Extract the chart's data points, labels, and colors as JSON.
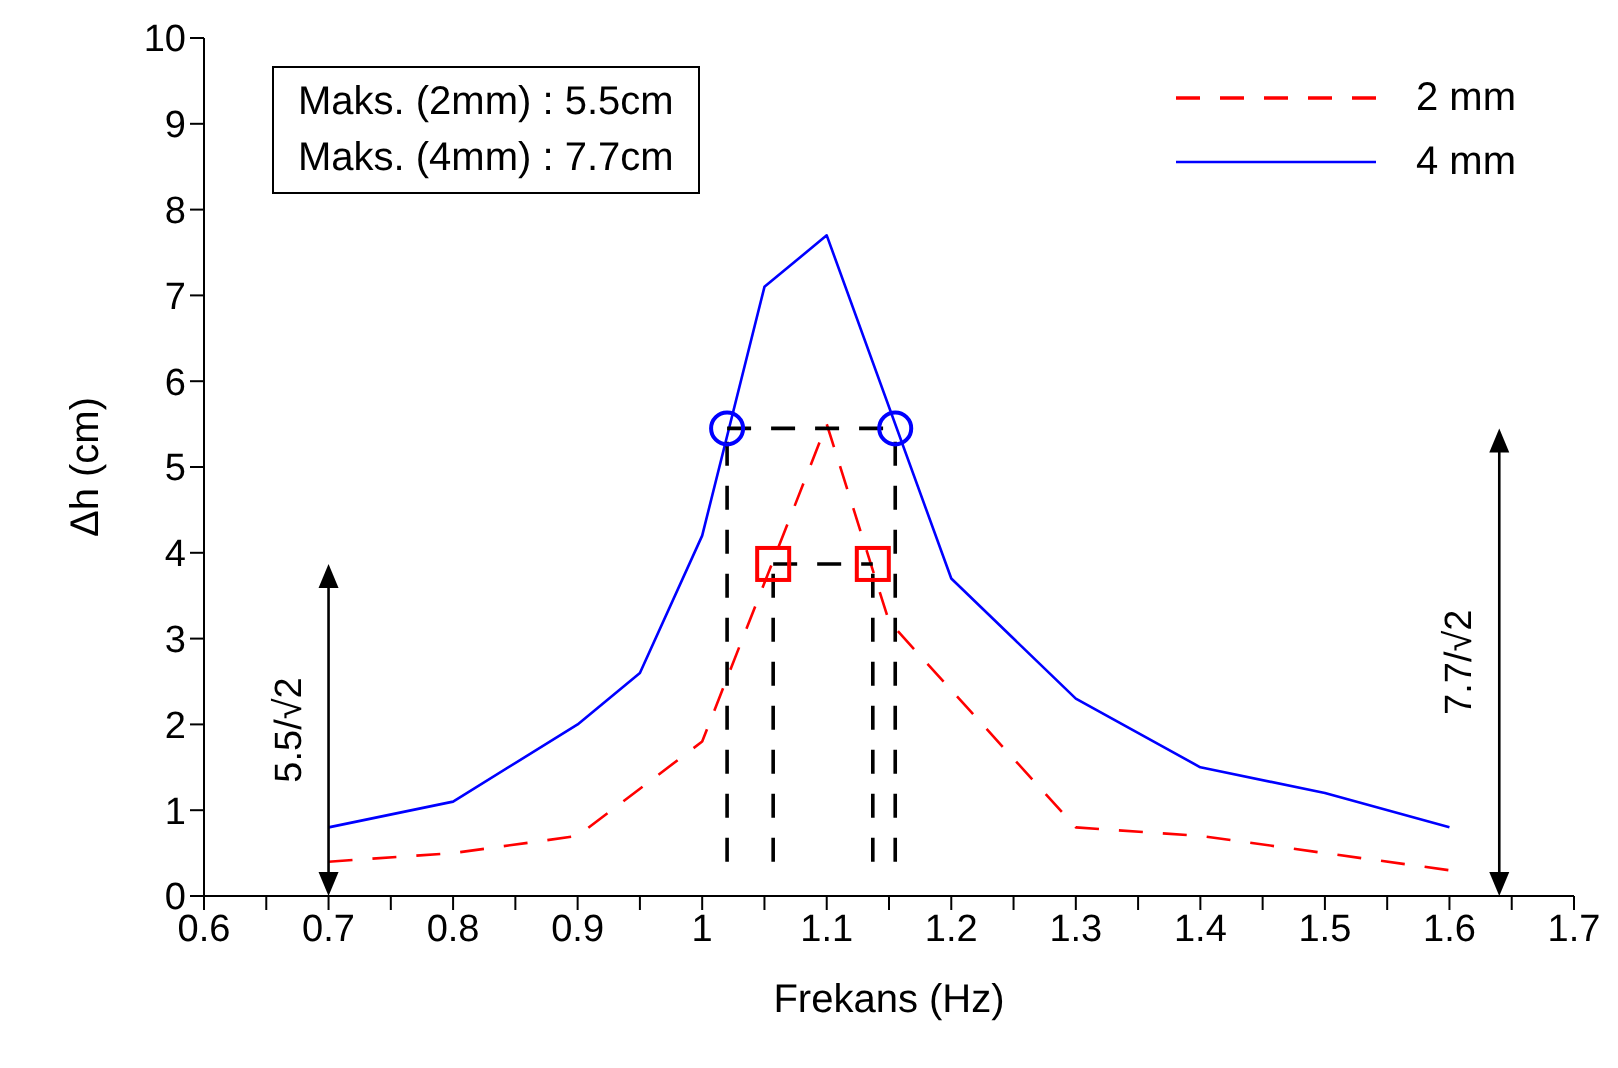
{
  "chart_data": {
    "type": "line",
    "xlabel": "Frekans (Hz)",
    "ylabel": "Δh (cm)",
    "xlim": [
      0.6,
      1.7
    ],
    "ylim": [
      0,
      10
    ],
    "xticks": [
      0.6,
      {
        "value": 0.65,
        "label": null
      },
      0.7,
      {
        "value": 0.75,
        "label": null
      },
      0.8,
      {
        "value": 0.85,
        "label": null
      },
      0.9,
      {
        "value": 0.95,
        "label": null
      },
      1,
      {
        "value": 1.05,
        "label": null
      },
      1.1,
      {
        "value": 1.15,
        "label": null
      },
      1.2,
      {
        "value": 1.25,
        "label": null
      },
      1.3,
      {
        "value": 1.35,
        "label": null
      },
      1.4,
      {
        "value": 1.45,
        "label": null
      },
      1.5,
      {
        "value": 1.55,
        "label": null
      },
      1.6,
      {
        "value": 1.65,
        "label": null
      },
      1.7
    ],
    "yticks": [
      0,
      1,
      2,
      3,
      4,
      5,
      6,
      7,
      8,
      9,
      10
    ],
    "grid": false,
    "legend": "top right",
    "series": [
      {
        "name": "2 mm",
        "color": "#ff0000",
        "line_style": "dashed",
        "marker": "none",
        "x": [
          0.7,
          0.8,
          0.9,
          1.0,
          1.1,
          1.15,
          1.3,
          1.4,
          1.5,
          1.6
        ],
        "values": [
          0.4,
          0.5,
          0.7,
          1.8,
          5.5,
          3.2,
          0.8,
          0.7,
          0.5,
          0.3
        ]
      },
      {
        "name": "4 mm",
        "color": "#0000ff",
        "line_style": "solid",
        "marker": "none",
        "x": [
          0.7,
          0.8,
          0.9,
          0.95,
          1.0,
          1.05,
          1.1,
          1.2,
          1.3,
          1.4,
          1.5,
          1.6
        ],
        "values": [
          0.8,
          1.1,
          2.0,
          2.6,
          4.2,
          7.1,
          7.7,
          3.7,
          2.3,
          1.5,
          1.2,
          0.8
        ]
      },
      {
        "type": "line",
        "color": "#000000",
        "line_style": "dashed",
        "marker": "none",
        "x": [
          1.02,
          1.155
        ],
        "values": [
          5.45,
          5.45
        ]
      },
      {
        "type": "line",
        "color": "#000000",
        "line_style": "dashed",
        "marker": "none",
        "x": [
          1.02,
          1.02
        ],
        "values": [
          0.4,
          5.45
        ]
      },
      {
        "type": "line",
        "color": "#000000",
        "line_style": "dashed",
        "marker": "none",
        "x": [
          1.155,
          1.155
        ],
        "values": [
          0.4,
          5.45
        ]
      },
      {
        "type": "line",
        "color": "#000000",
        "line_style": "dashed",
        "marker": "none",
        "x": [
          1.057,
          1.137
        ],
        "values": [
          3.87,
          3.87
        ]
      },
      {
        "type": "line",
        "color": "#000000",
        "line_style": "dashed",
        "marker": "none",
        "x": [
          1.057,
          1.057
        ],
        "values": [
          0.4,
          3.87
        ]
      },
      {
        "type": "line",
        "color": "#000000",
        "line_style": "dashed",
        "marker": "none",
        "x": [
          1.137,
          1.137
        ],
        "values": [
          0.4,
          3.87
        ]
      },
      {
        "type": "scatter",
        "color": "#0000ff",
        "marker": "circle",
        "x": [
          1.02,
          1.155
        ],
        "values": [
          5.45,
          5.45
        ]
      },
      {
        "type": "scatter",
        "color": "#ff0000",
        "marker": "square",
        "x": [
          1.057,
          1.137
        ],
        "values": [
          3.87,
          3.87
        ]
      }
    ],
    "annotations": [
      "Maks. (2mm) : 5.5cm",
      "Maks. (4mm) : 7.7cm",
      "5.5/√2",
      "7.7/√2"
    ]
  }
}
